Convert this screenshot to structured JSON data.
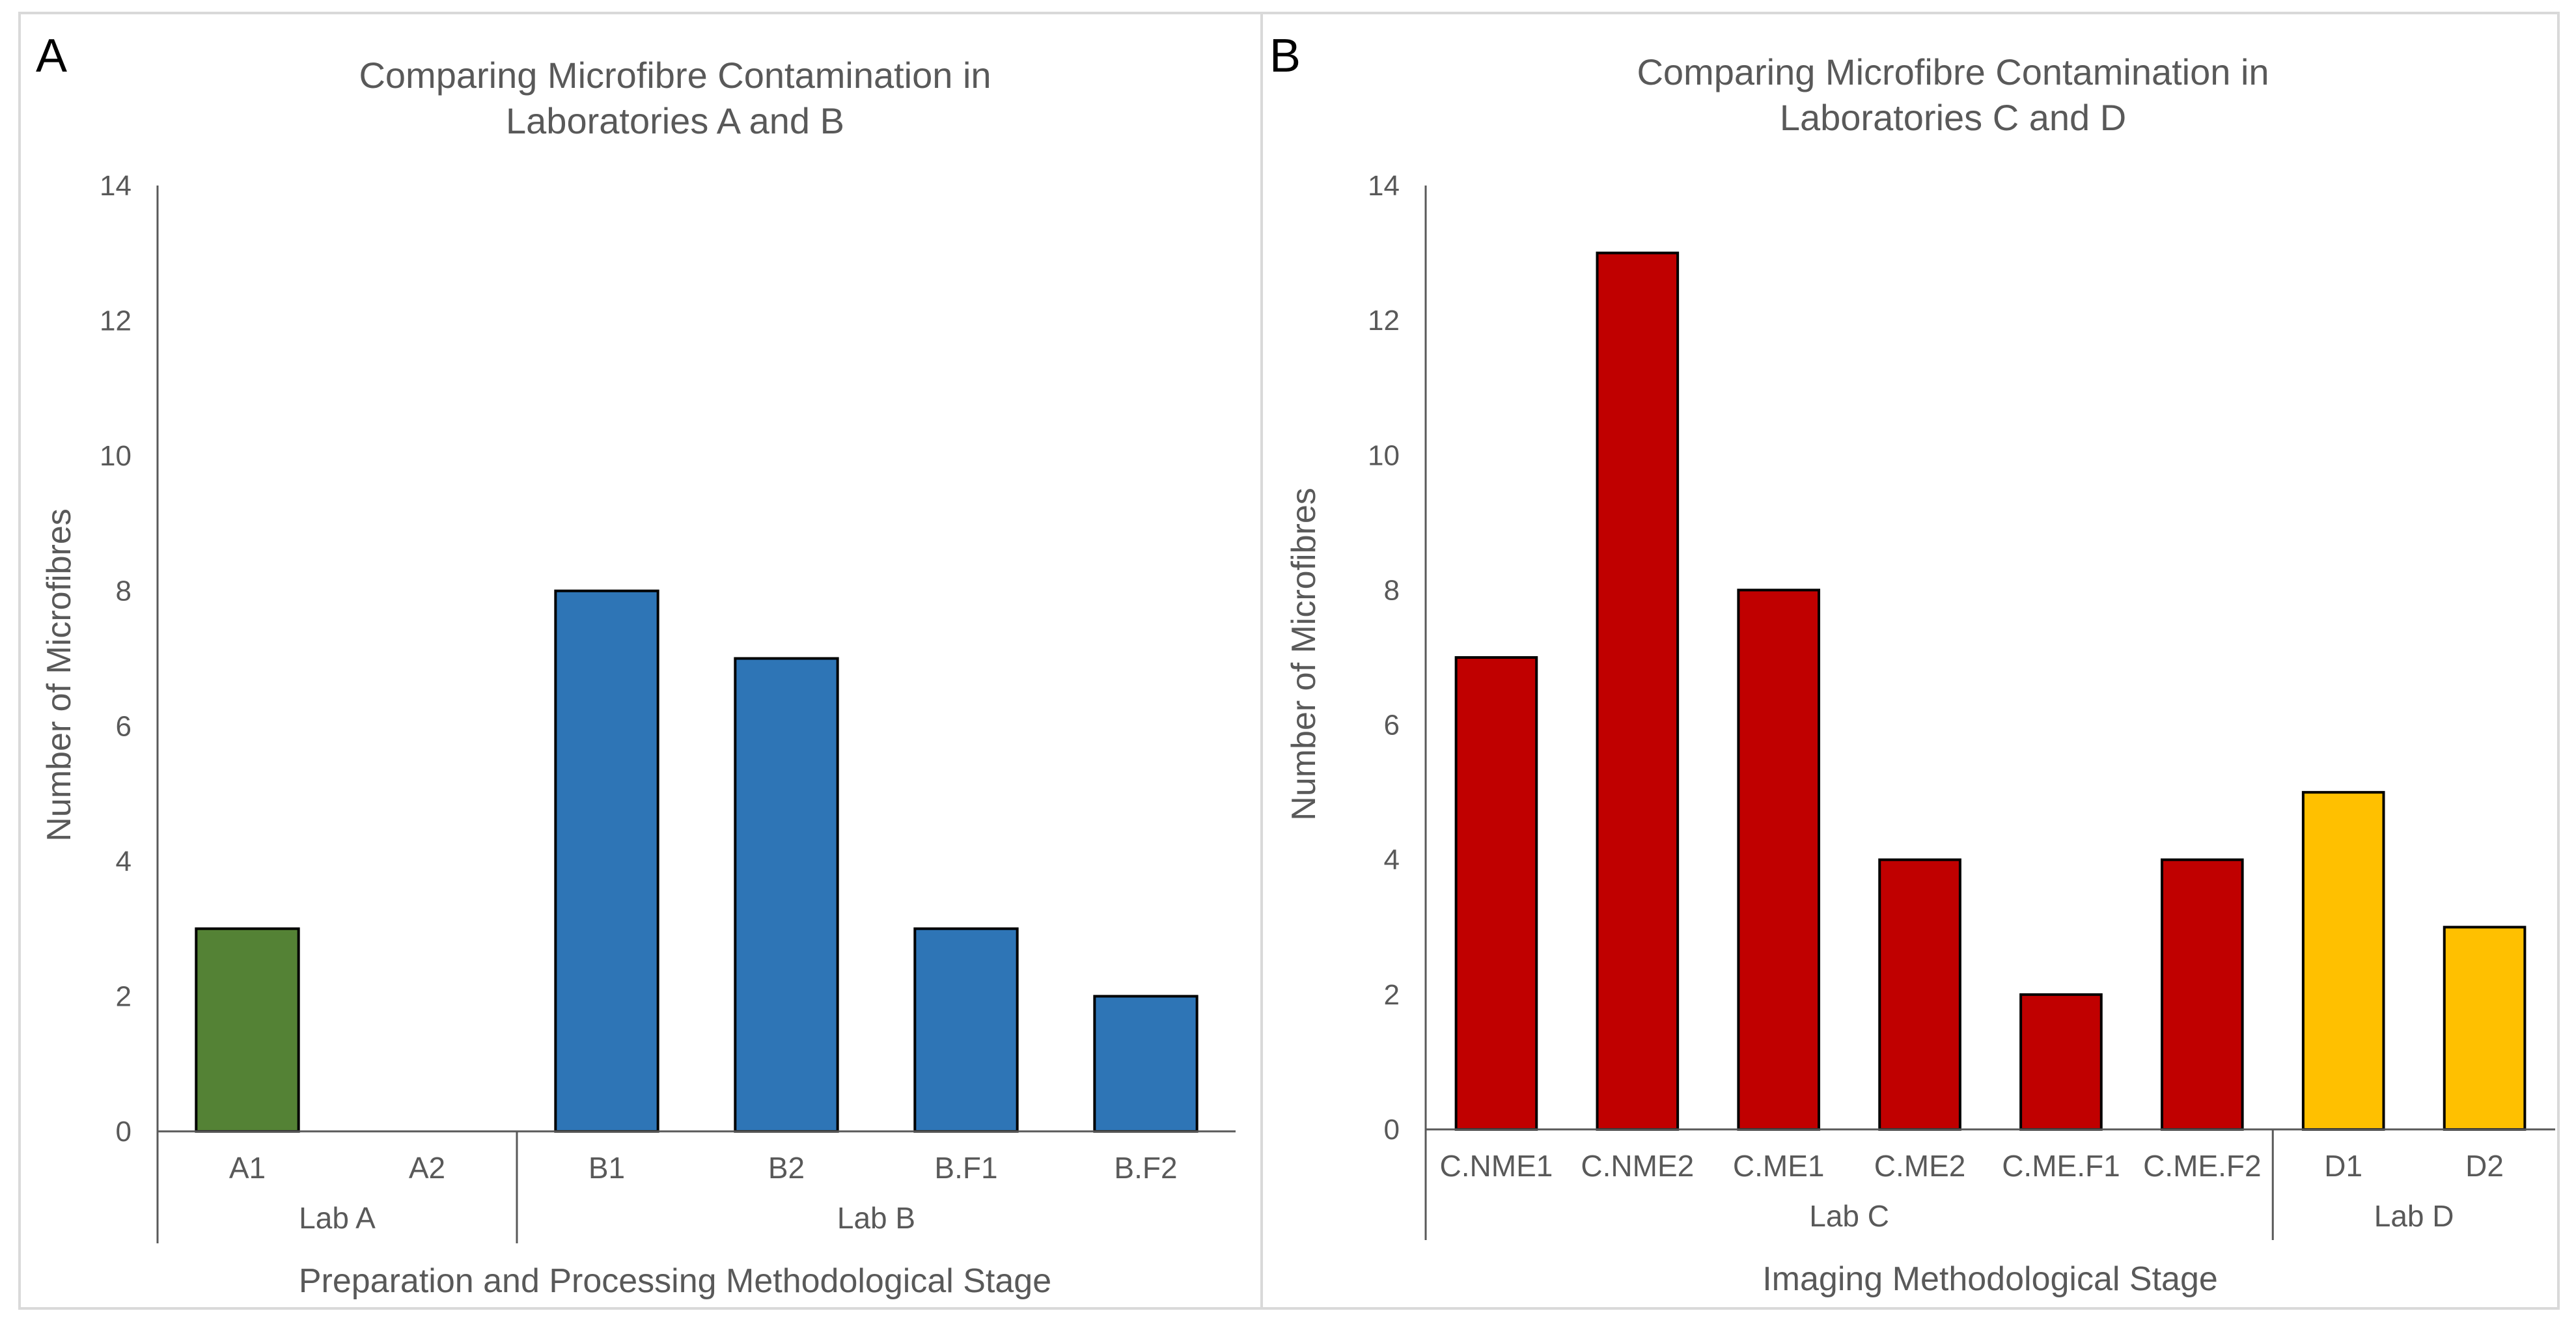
{
  "figure": {
    "panel_a": {
      "label": "A"
    },
    "panel_b": {
      "label": "B"
    }
  },
  "chart_data": [
    {
      "type": "bar",
      "panel": "A",
      "title": [
        "Comparing Microfibre Contamination in",
        "Laboratories A and B"
      ],
      "xlabel": "Preparation and Processing Methodological Stage",
      "ylabel": "Number of Microfibres",
      "ylim": [
        0,
        14
      ],
      "yticks": [
        0,
        2,
        4,
        6,
        8,
        10,
        12,
        14
      ],
      "grid": false,
      "legend": "none",
      "categories": [
        "A1",
        "A2",
        "B1",
        "B2",
        "B.F1",
        "B.F2"
      ],
      "values": [
        3,
        0,
        8,
        7,
        3,
        2
      ],
      "bar_colors": [
        "#548235",
        "#548235",
        "#2E75B6",
        "#2E75B6",
        "#2E75B6",
        "#2E75B6"
      ],
      "groups": [
        {
          "name": "Lab A",
          "count": 2
        },
        {
          "name": "Lab B",
          "count": 4
        }
      ]
    },
    {
      "type": "bar",
      "panel": "B",
      "title": [
        "Comparing Microfibre Contamination in",
        "Laboratories C and D"
      ],
      "xlabel": "Imaging Methodological Stage",
      "ylabel": "Number of Microfibres",
      "ylim": [
        0,
        14
      ],
      "yticks": [
        0,
        2,
        4,
        6,
        8,
        10,
        12,
        14
      ],
      "grid": false,
      "legend": "none",
      "categories": [
        "C.NME1",
        "C.NME2",
        "C.ME1",
        "C.ME2",
        "C.ME.F1",
        "C.ME.F2",
        "D1",
        "D2"
      ],
      "values": [
        7,
        13,
        8,
        4,
        2,
        4,
        5,
        3
      ],
      "bar_colors": [
        "#C00000",
        "#C00000",
        "#C00000",
        "#C00000",
        "#C00000",
        "#C00000",
        "#FFC000",
        "#FFC000"
      ],
      "groups": [
        {
          "name": "Lab C",
          "count": 6
        },
        {
          "name": "Lab D",
          "count": 2
        }
      ]
    }
  ]
}
